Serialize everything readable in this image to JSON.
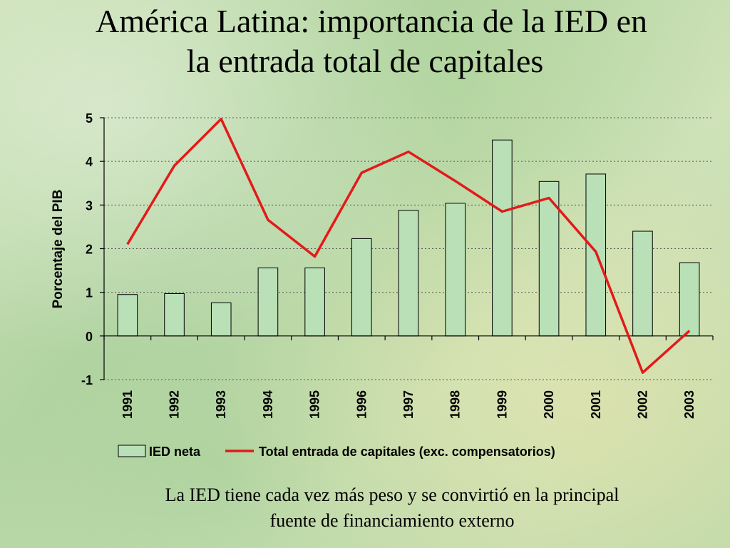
{
  "slide": {
    "title_line1": "América Latina: importancia de la IED en",
    "title_line2": "la entrada total de capitales",
    "caption_line1": "La IED tiene cada vez más peso y se convirtió en la principal",
    "caption_line2": "fuente de financiamiento externo"
  },
  "colors": {
    "bar_fill": "#b9e0b6",
    "bar_stroke": "#000000",
    "line": "#e21a1a",
    "grid": "#555555"
  },
  "chart_data": {
    "type": "bar",
    "title": "",
    "xlabel": "",
    "ylabel": "Porcentaje del PIB",
    "ylim": [
      -1,
      5
    ],
    "yticks": [
      "5",
      "4",
      "3",
      "2",
      "1",
      "0",
      "-1"
    ],
    "grid": true,
    "legend_position": "bottom",
    "categories": [
      "1991",
      "1992",
      "1993",
      "1994",
      "1995",
      "1996",
      "1997",
      "1998",
      "1999",
      "2000",
      "2001",
      "2002",
      "2003"
    ],
    "series": [
      {
        "name": "IED neta",
        "type": "bar",
        "values": [
          0.95,
          0.97,
          0.76,
          1.56,
          1.56,
          2.23,
          2.88,
          3.04,
          4.49,
          3.54,
          3.71,
          2.4,
          1.68
        ]
      },
      {
        "name": "Total entrada de capitales (exc. compensatorios)",
        "type": "line",
        "values": [
          2.1,
          3.9,
          4.97,
          2.66,
          1.82,
          3.74,
          4.22,
          3.55,
          2.85,
          3.16,
          1.93,
          -0.84,
          0.12
        ]
      }
    ]
  }
}
